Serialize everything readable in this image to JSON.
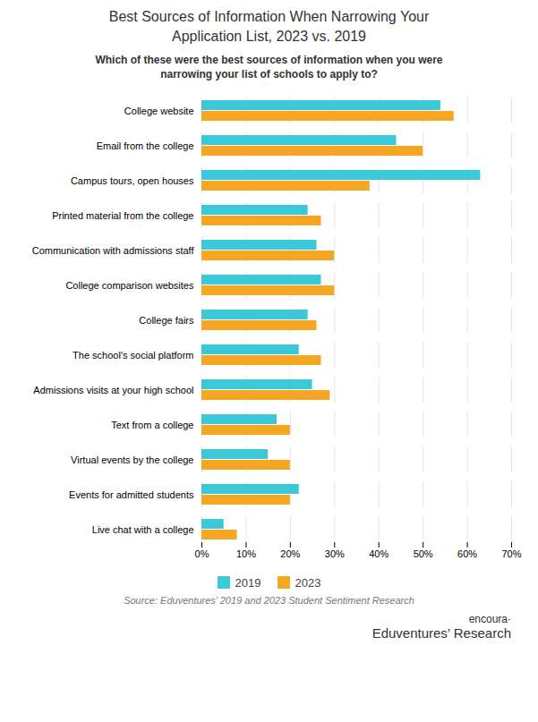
{
  "chart_data": {
    "type": "bar",
    "orientation": "horizontal",
    "title": "Best Sources of Information When Narrowing Your\nApplication List, 2023 vs. 2019",
    "subtitle": "Which of these were the best sources of information when you were\nnarrowing your list of schools to apply to?",
    "caption": "Source: Eduventures’ 2019 and 2023 Student Sentiment Research",
    "annotations": [
      "encoura·",
      "Eduventures’ Research"
    ],
    "categories": [
      "College website",
      "Email from the college",
      "Campus tours, open houses",
      "Printed material from the college",
      "Communication with admissions staff",
      "College comparison websites",
      "College fairs",
      "The school's social platform",
      "Admissions visits at your high school",
      "Text from a college",
      "Virtual events by the college",
      "Events for admitted students",
      "Live chat with a college"
    ],
    "series": [
      {
        "name": "2019",
        "color": "#3BC8D8",
        "values": [
          0.54,
          0.44,
          0.63,
          0.24,
          0.26,
          0.27,
          0.24,
          0.22,
          0.25,
          0.17,
          0.15,
          0.22,
          0.05
        ]
      },
      {
        "name": "2023",
        "color": "#F5A623",
        "values": [
          0.57,
          0.5,
          0.38,
          0.27,
          0.3,
          0.3,
          0.26,
          0.27,
          0.29,
          0.2,
          0.2,
          0.2,
          0.08
        ]
      }
    ],
    "xlim": [
      0,
      0.7
    ],
    "xticks": [
      {
        "value": 0.0,
        "label": "0%"
      },
      {
        "value": 0.1,
        "label": "10%"
      },
      {
        "value": 0.2,
        "label": "20%"
      },
      {
        "value": 0.3,
        "label": "30%"
      },
      {
        "value": 0.4,
        "label": "40%"
      },
      {
        "value": 0.5,
        "label": "50%"
      },
      {
        "value": 0.6,
        "label": "60%"
      },
      {
        "value": 0.7,
        "label": "70%"
      }
    ],
    "grid": true,
    "legend": "bottom"
  }
}
